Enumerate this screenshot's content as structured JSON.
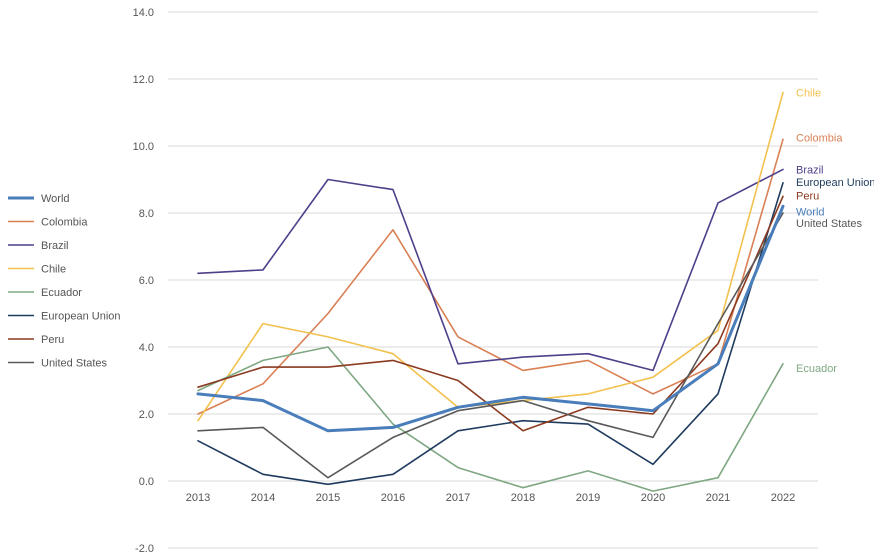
{
  "chart_data": {
    "type": "line",
    "x": [
      "2013",
      "2014",
      "2015",
      "2016",
      "2017",
      "2018",
      "2019",
      "2020",
      "2021",
      "2022"
    ],
    "ylim": [
      -2.0,
      14.0
    ],
    "yticks": [
      "14.0",
      "12.0",
      "10.0",
      "8.0",
      "6.0",
      "4.0",
      "2.0",
      "0.0",
      "-2.0"
    ],
    "grid": true,
    "legend_position": "left",
    "series": [
      {
        "name": "World",
        "color": "#4a7ebb",
        "width": 3,
        "end_label": "World",
        "values": [
          2.6,
          2.4,
          1.5,
          1.6,
          2.2,
          2.5,
          2.3,
          2.1,
          3.5,
          8.2
        ]
      },
      {
        "name": "Colombia",
        "color": "#d98055",
        "width": 1.6,
        "end_label": "Colombia",
        "values": [
          2.0,
          2.9,
          5.0,
          7.5,
          4.3,
          3.3,
          3.6,
          2.6,
          3.5,
          10.2
        ]
      },
      {
        "name": "Brazil",
        "color": "#4f3f8a",
        "width": 1.6,
        "end_label": "Brazil",
        "values": [
          6.2,
          6.3,
          9.0,
          8.7,
          3.5,
          3.7,
          3.8,
          3.3,
          8.3,
          9.3
        ]
      },
      {
        "name": "Chile",
        "color": "#f2c14e",
        "width": 1.6,
        "end_label": "Chile",
        "values": [
          1.8,
          4.7,
          4.3,
          3.8,
          2.2,
          2.4,
          2.6,
          3.1,
          4.5,
          11.6
        ]
      },
      {
        "name": "Ecuador",
        "color": "#7fa882",
        "width": 1.6,
        "end_label": "Ecuador",
        "values": [
          2.7,
          3.6,
          4.0,
          1.7,
          0.4,
          -0.2,
          0.3,
          -0.3,
          0.1,
          3.5
        ]
      },
      {
        "name": "European Union",
        "color": "#1f3b5e",
        "width": 1.6,
        "end_label": "European Union",
        "values": [
          1.2,
          0.2,
          -0.1,
          0.2,
          1.5,
          1.8,
          1.7,
          0.5,
          2.6,
          8.9
        ]
      },
      {
        "name": "Peru",
        "color": "#8b3a1f",
        "width": 1.6,
        "end_label": "Peru",
        "values": [
          2.8,
          3.4,
          3.4,
          3.6,
          3.0,
          1.5,
          2.2,
          2.0,
          4.1,
          8.5
        ]
      },
      {
        "name": "United States",
        "color": "#595959",
        "width": 1.6,
        "end_label": "United States",
        "values": [
          1.5,
          1.6,
          0.1,
          1.3,
          2.1,
          2.4,
          1.8,
          1.3,
          4.7,
          8.0
        ]
      }
    ]
  }
}
